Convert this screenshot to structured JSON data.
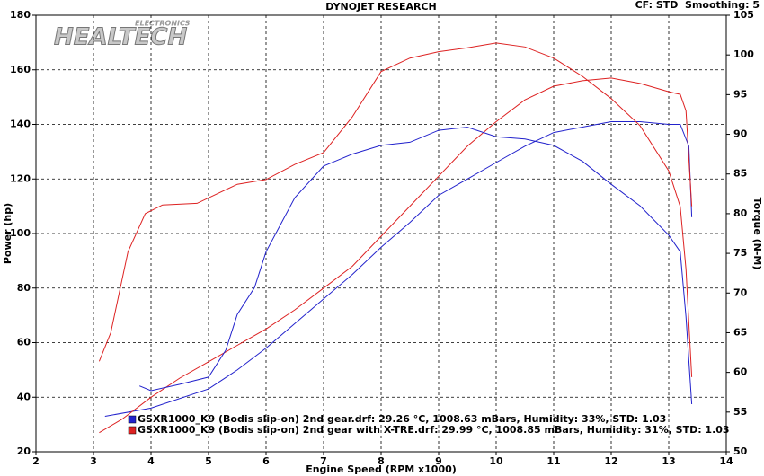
{
  "chart_data": {
    "type": "line",
    "title": "DYNOJET RESEARCH",
    "annotation": "CF: STD  Smoothing: 5",
    "logo": "HEALTECH",
    "logo_sub": "ELECTRONICS",
    "xlabel": "Engine Speed (RPM x1000)",
    "ylabel": "Power (hp)",
    "y2label": "Torque (N-M)",
    "xlim": [
      2,
      14
    ],
    "xticks": [
      2,
      3,
      4,
      5,
      6,
      7,
      8,
      9,
      10,
      11,
      12,
      13,
      14
    ],
    "ylim": [
      20,
      180
    ],
    "yticks": [
      20,
      40,
      60,
      80,
      100,
      120,
      140,
      160,
      180
    ],
    "y2lim": [
      50,
      105
    ],
    "y2ticks": [
      50,
      55,
      60,
      65,
      70,
      75,
      80,
      85,
      90,
      95,
      100,
      105
    ],
    "grid": true,
    "series": [
      {
        "name": "GSXR1000_K9 (Bodis slip-on) 2nd gear.drf: 29.26 °C, 1008.63 mBars, Humidity: 33%, STD: 1.03",
        "color": "#2222cc",
        "x": [
          3.2,
          4,
          5,
          5.5,
          6,
          6.5,
          7,
          7.5,
          8,
          8.5,
          9,
          9.5,
          10,
          10.5,
          11,
          11.5,
          12,
          12.5,
          13,
          13.2,
          13.35,
          13.4
        ],
        "values": [
          33,
          36,
          43,
          50,
          58,
          67,
          76,
          85,
          95,
          104,
          114,
          120,
          126,
          132,
          137,
          139,
          141,
          141,
          140,
          140,
          132,
          106
        ]
      },
      {
        "name": "GSXR1000_K9 (Bodis slip-on) 2nd gear with X-TRE.drf: 29.99 °C, 1008.85 mBars, Humidity: 31%, STD: 1.03",
        "color": "#dd2222",
        "x": [
          3.1,
          3.5,
          4,
          4.5,
          5,
          5.5,
          6,
          6.5,
          7,
          7.5,
          8,
          8.5,
          9,
          9.5,
          10,
          10.5,
          11,
          11.5,
          12,
          12.5,
          13,
          13.2,
          13.3,
          13.4
        ],
        "values": [
          27,
          32,
          40,
          47,
          53,
          59,
          65,
          72,
          80,
          88,
          99,
          110,
          121,
          132,
          141,
          149,
          154,
          156,
          157,
          155,
          152,
          151,
          145,
          110
        ]
      },
      {
        "axis": "y2",
        "color": "#2222cc",
        "x": [
          3.8,
          4,
          4.5,
          5,
          5.3,
          5.5,
          5.8,
          6,
          6.5,
          7,
          7.5,
          8,
          8.5,
          9,
          9.5,
          10,
          10.5,
          11,
          11.5,
          12,
          12.5,
          13,
          13.2,
          13.3,
          13.4
        ],
        "values": [
          58.3,
          57.7,
          58.5,
          59.4,
          62.8,
          67.3,
          70.7,
          75.2,
          82,
          86,
          87.5,
          88.6,
          89,
          90.5,
          90.9,
          89.7,
          89.4,
          88.6,
          86.6,
          83.7,
          81,
          77.3,
          75.2,
          67,
          56
        ]
      },
      {
        "axis": "y2",
        "color": "#dd2222",
        "x": [
          3.1,
          3.3,
          3.6,
          3.9,
          4.2,
          4.8,
          5.5,
          6,
          6.5,
          7,
          7.5,
          8,
          8.5,
          9,
          9.5,
          10,
          10.5,
          11,
          11.5,
          12,
          12.5,
          13,
          13.2,
          13.3,
          13.4
        ],
        "values": [
          61.4,
          65,
          75.2,
          80,
          81.1,
          81.3,
          83.7,
          84.3,
          86.2,
          87.7,
          92.2,
          97.9,
          99.6,
          100.4,
          100.9,
          101.5,
          101,
          99.6,
          97.3,
          94.5,
          91.1,
          85.4,
          80.9,
          73,
          59.4
        ]
      }
    ]
  }
}
